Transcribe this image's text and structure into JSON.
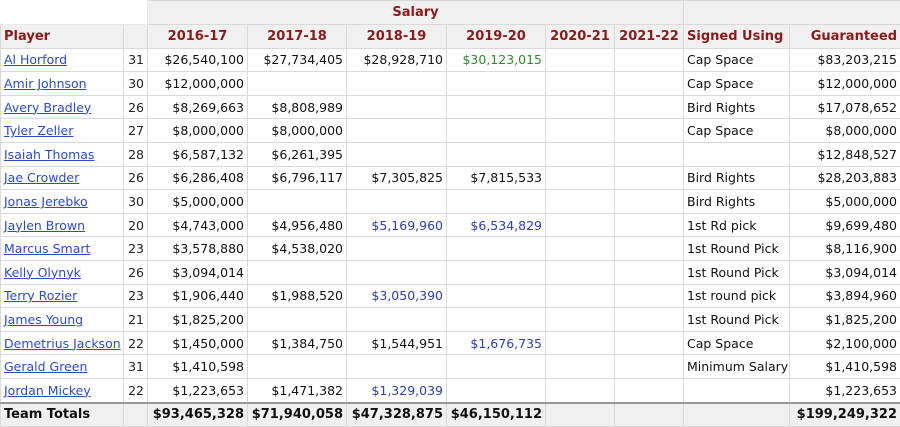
{
  "overheader": {
    "salary": "Salary"
  },
  "columns": {
    "player": "Player",
    "years": [
      "2016-17",
      "2017-18",
      "2018-19",
      "2019-20",
      "2020-21",
      "2021-22"
    ],
    "signed": "Signed Using",
    "guaranteed": "Guaranteed"
  },
  "rows": [
    {
      "player": "Al Horford",
      "age": "31",
      "s": [
        "$26,540,100",
        "$27,734,405",
        "$28,928,710",
        "$30,123,015",
        "",
        ""
      ],
      "opt": [
        "",
        "",
        "",
        "green",
        "",
        ""
      ],
      "signed": "Cap Space",
      "guaranteed": "$83,203,215"
    },
    {
      "player": "Amir Johnson",
      "age": "30",
      "s": [
        "$12,000,000",
        "",
        "",
        "",
        "",
        ""
      ],
      "opt": [
        "",
        "",
        "",
        "",
        "",
        ""
      ],
      "signed": "Cap Space",
      "guaranteed": "$12,000,000"
    },
    {
      "player": "Avery Bradley",
      "age": "26",
      "s": [
        "$8,269,663",
        "$8,808,989",
        "",
        "",
        "",
        ""
      ],
      "opt": [
        "",
        "",
        "",
        "",
        "",
        ""
      ],
      "signed": "Bird Rights",
      "guaranteed": "$17,078,652"
    },
    {
      "player": "Tyler Zeller",
      "age": "27",
      "s": [
        "$8,000,000",
        "$8,000,000",
        "",
        "",
        "",
        ""
      ],
      "opt": [
        "",
        "",
        "",
        "",
        "",
        ""
      ],
      "signed": "Cap Space",
      "guaranteed": "$8,000,000"
    },
    {
      "player": "Isaiah Thomas",
      "age": "28",
      "s": [
        "$6,587,132",
        "$6,261,395",
        "",
        "",
        "",
        ""
      ],
      "opt": [
        "",
        "",
        "",
        "",
        "",
        ""
      ],
      "signed": "",
      "guaranteed": "$12,848,527"
    },
    {
      "player": "Jae Crowder",
      "age": "26",
      "s": [
        "$6,286,408",
        "$6,796,117",
        "$7,305,825",
        "$7,815,533",
        "",
        ""
      ],
      "opt": [
        "",
        "",
        "",
        "",
        "",
        ""
      ],
      "signed": "Bird Rights",
      "guaranteed": "$28,203,883"
    },
    {
      "player": "Jonas Jerebko",
      "age": "30",
      "s": [
        "$5,000,000",
        "",
        "",
        "",
        "",
        ""
      ],
      "opt": [
        "",
        "",
        "",
        "",
        "",
        ""
      ],
      "signed": "Bird Rights",
      "guaranteed": "$5,000,000"
    },
    {
      "player": "Jaylen Brown",
      "age": "20",
      "s": [
        "$4,743,000",
        "$4,956,480",
        "$5,169,960",
        "$6,534,829",
        "",
        ""
      ],
      "opt": [
        "",
        "",
        "blue",
        "blue",
        "",
        ""
      ],
      "signed": "1st Rd pick",
      "guaranteed": "$9,699,480"
    },
    {
      "player": "Marcus Smart",
      "age": "23",
      "s": [
        "$3,578,880",
        "$4,538,020",
        "",
        "",
        "",
        ""
      ],
      "opt": [
        "",
        "",
        "",
        "",
        "",
        ""
      ],
      "signed": "1st Round Pick",
      "guaranteed": "$8,116,900"
    },
    {
      "player": "Kelly Olynyk",
      "age": "26",
      "s": [
        "$3,094,014",
        "",
        "",
        "",
        "",
        ""
      ],
      "opt": [
        "",
        "",
        "",
        "",
        "",
        ""
      ],
      "signed": "1st Round Pick",
      "guaranteed": "$3,094,014"
    },
    {
      "player": "Terry Rozier",
      "age": "23",
      "s": [
        "$1,906,440",
        "$1,988,520",
        "$3,050,390",
        "",
        "",
        ""
      ],
      "opt": [
        "",
        "",
        "blue",
        "",
        "",
        ""
      ],
      "signed": "1st round pick",
      "guaranteed": "$3,894,960"
    },
    {
      "player": "James Young",
      "age": "21",
      "s": [
        "$1,825,200",
        "",
        "",
        "",
        "",
        ""
      ],
      "opt": [
        "",
        "",
        "",
        "",
        "",
        ""
      ],
      "signed": "1st Round Pick",
      "guaranteed": "$1,825,200"
    },
    {
      "player": "Demetrius Jackson",
      "age": "22",
      "s": [
        "$1,450,000",
        "$1,384,750",
        "$1,544,951",
        "$1,676,735",
        "",
        ""
      ],
      "opt": [
        "",
        "",
        "",
        "blue",
        "",
        ""
      ],
      "signed": "Cap Space",
      "guaranteed": "$2,100,000"
    },
    {
      "player": "Gerald Green",
      "age": "31",
      "s": [
        "$1,410,598",
        "",
        "",
        "",
        "",
        ""
      ],
      "opt": [
        "",
        "",
        "",
        "",
        "",
        ""
      ],
      "signed": "Minimum Salary",
      "guaranteed": "$1,410,598"
    },
    {
      "player": "Jordan Mickey",
      "age": "22",
      "s": [
        "$1,223,653",
        "$1,471,382",
        "$1,329,039",
        "",
        "",
        ""
      ],
      "opt": [
        "",
        "",
        "blue",
        "",
        "",
        ""
      ],
      "signed": "",
      "guaranteed": "$1,223,653"
    }
  ],
  "totals": {
    "label": "Team Totals",
    "s": [
      "$93,465,328",
      "$71,940,058",
      "$47,328,875",
      "$46,150,112",
      "",
      ""
    ],
    "guaranteed": "$199,249,322"
  },
  "colors": {
    "header_text": "#8b1a1a",
    "link": "#2b4cc4",
    "green": "#2d8a2d",
    "blue": "#2b3fb0"
  }
}
